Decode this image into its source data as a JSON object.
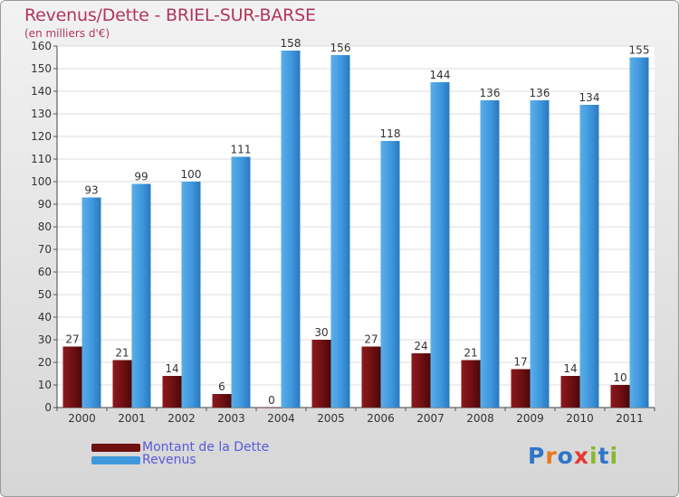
{
  "chart_data": {
    "type": "bar",
    "title": "Revenus/Dette - BRIEL-SUR-BARSE",
    "subtitle": "(en milliers d'€)",
    "categories": [
      "2000",
      "2001",
      "2002",
      "2003",
      "2004",
      "2005",
      "2006",
      "2007",
      "2008",
      "2009",
      "2010",
      "2011"
    ],
    "series": [
      {
        "name": "Montant de la Dette",
        "color": "#6e0f12",
        "values": [
          27,
          21,
          14,
          6,
          0,
          30,
          27,
          24,
          21,
          17,
          14,
          10
        ]
      },
      {
        "name": "Revenus",
        "color": "#3f97dc",
        "values": [
          93,
          99,
          100,
          111,
          158,
          156,
          118,
          144,
          136,
          136,
          134,
          155
        ]
      }
    ],
    "yticks": [
      0,
      10,
      20,
      30,
      40,
      50,
      60,
      70,
      80,
      90,
      100,
      110,
      120,
      130,
      140,
      150,
      160
    ],
    "ylim": [
      0,
      160
    ],
    "grid": true,
    "legend_position": "bottom-left"
  },
  "legend": {
    "debt_label": "Montant de la Dette",
    "revenue_label": "Revenus",
    "debt_color": "#6e0f12",
    "revenue_color": "#3f97dc"
  },
  "logo": [
    "P",
    "r",
    "o",
    "x",
    "i",
    "t",
    "i"
  ]
}
